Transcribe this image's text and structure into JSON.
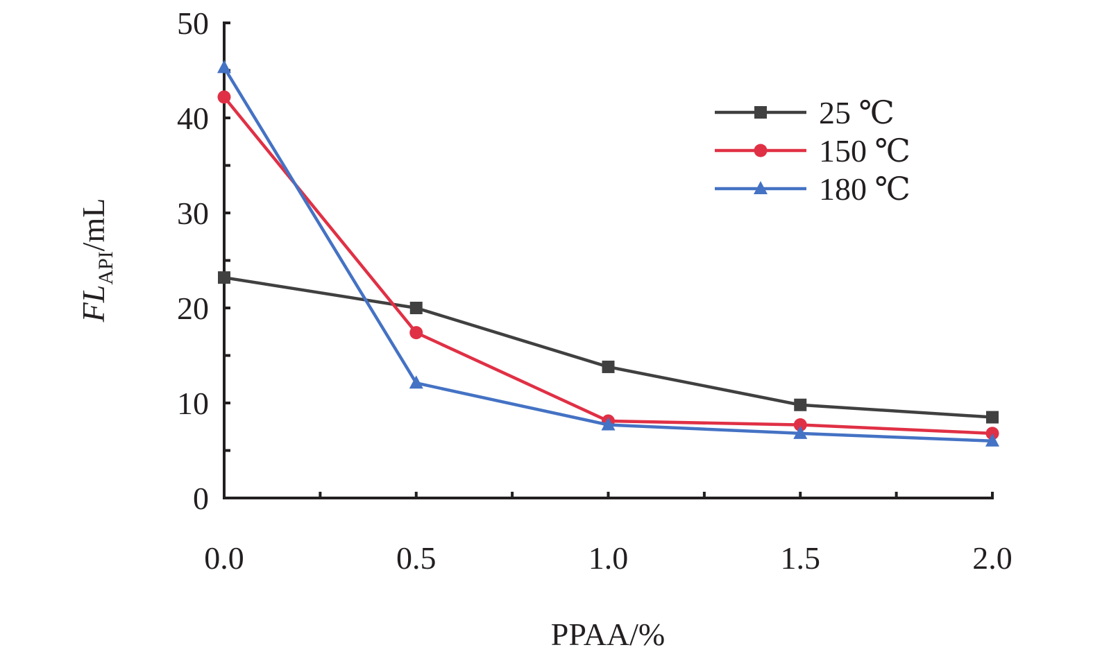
{
  "chart_data": {
    "type": "line",
    "x": [
      0.0,
      0.5,
      1.0,
      1.5,
      2.0
    ],
    "x_tick_labels": [
      "0.0",
      "0.5",
      "1.0",
      "1.5",
      "2.0"
    ],
    "y_tick_labels": [
      "0",
      "10",
      "20",
      "30",
      "40",
      "50"
    ],
    "xlim": [
      0,
      2
    ],
    "ylim": [
      0,
      50
    ],
    "xlabel": "PPAA/%",
    "ylabel": {
      "main": "FL",
      "sub": "API",
      "unit": "/mL"
    },
    "grid": false,
    "legend_position": "top-right",
    "series": [
      {
        "name": "25 ℃",
        "color": "#404040",
        "marker": "square",
        "values": [
          23.2,
          20.0,
          13.8,
          9.8,
          8.5
        ]
      },
      {
        "name": "150 ℃",
        "color": "#e03045",
        "marker": "circle",
        "values": [
          42.2,
          17.4,
          8.1,
          7.7,
          6.8
        ]
      },
      {
        "name": "180 ℃",
        "color": "#4472c4",
        "marker": "triangle",
        "values": [
          45.3,
          12.1,
          7.7,
          6.8,
          6.0
        ]
      }
    ]
  }
}
